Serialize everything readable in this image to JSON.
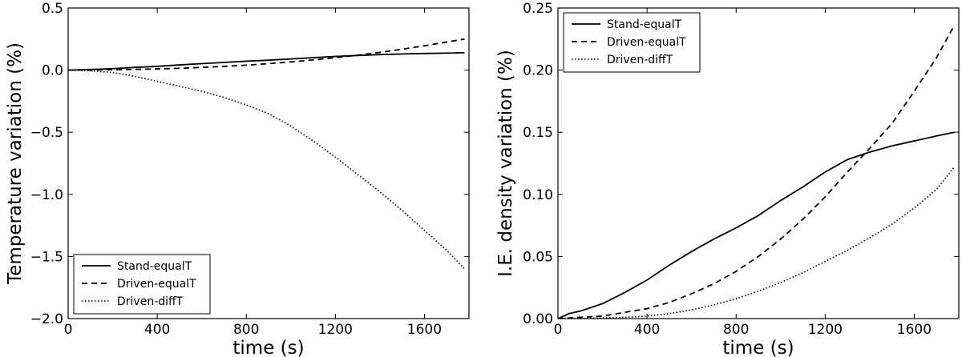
{
  "chart_data": [
    {
      "type": "line",
      "xlabel": "time (s)",
      "ylabel": "Temperature variation (%)",
      "xlim": [
        0,
        1800
      ],
      "ylim": [
        -2.0,
        0.5
      ],
      "xticks": [
        0,
        400,
        800,
        1200,
        1600
      ],
      "yticks": [
        -2.0,
        -1.5,
        -1.0,
        -0.5,
        0.0,
        0.5
      ],
      "xtick_labels": [
        "0",
        "400",
        "800",
        "1200",
        "1600"
      ],
      "ytick_labels": [
        "−2.0",
        "−1.5",
        "−1.0",
        "−0.5",
        "0.0",
        "0.5"
      ],
      "grid": false,
      "legend_position": "bottom-left",
      "series": [
        {
          "name": "Stand-equalT",
          "style": "solid",
          "x": [
            0,
            100,
            200,
            300,
            400,
            500,
            600,
            700,
            800,
            900,
            1000,
            1100,
            1200,
            1300,
            1400,
            1500,
            1600,
            1700,
            1780
          ],
          "y": [
            0,
            0.005,
            0.012,
            0.022,
            0.03,
            0.042,
            0.052,
            0.062,
            0.072,
            0.08,
            0.09,
            0.1,
            0.11,
            0.118,
            0.125,
            0.13,
            0.134,
            0.137,
            0.14
          ]
        },
        {
          "name": "Driven-equalT",
          "style": "dashed",
          "x": [
            0,
            100,
            200,
            300,
            400,
            500,
            600,
            700,
            800,
            900,
            1000,
            1100,
            1200,
            1300,
            1400,
            1500,
            1600,
            1700,
            1780
          ],
          "y": [
            0,
            0.001,
            0.003,
            0.006,
            0.01,
            0.015,
            0.022,
            0.03,
            0.04,
            0.052,
            0.066,
            0.082,
            0.1,
            0.12,
            0.143,
            0.168,
            0.196,
            0.226,
            0.25
          ]
        },
        {
          "name": "Driven-diffT",
          "style": "dotted",
          "x": [
            0,
            100,
            200,
            300,
            400,
            500,
            600,
            700,
            800,
            900,
            1000,
            1100,
            1200,
            1300,
            1400,
            1500,
            1600,
            1700,
            1780
          ],
          "y": [
            0,
            -0.005,
            -0.02,
            -0.05,
            -0.09,
            -0.13,
            -0.17,
            -0.22,
            -0.28,
            -0.35,
            -0.45,
            -0.57,
            -0.7,
            -0.84,
            -0.98,
            -1.13,
            -1.29,
            -1.45,
            -1.6
          ]
        }
      ]
    },
    {
      "type": "line",
      "xlabel": "time (s)",
      "ylabel": "I.E. density variation (%)",
      "xlim": [
        0,
        1800
      ],
      "ylim": [
        0.0,
        0.25
      ],
      "xticks": [
        0,
        400,
        800,
        1200,
        1600
      ],
      "yticks": [
        0.0,
        0.05,
        0.1,
        0.15,
        0.2,
        0.25
      ],
      "xtick_labels": [
        "0",
        "400",
        "800",
        "1200",
        "1600"
      ],
      "ytick_labels": [
        "0.00",
        "0.05",
        "0.10",
        "0.15",
        "0.20",
        "0.25"
      ],
      "grid": false,
      "legend_position": "top-left",
      "series": [
        {
          "name": "Stand-equalT",
          "style": "solid",
          "x": [
            0,
            50,
            100,
            200,
            300,
            400,
            500,
            600,
            700,
            800,
            900,
            1000,
            1100,
            1200,
            1300,
            1400,
            1500,
            1600,
            1700,
            1780
          ],
          "y": [
            0,
            0.004,
            0.006,
            0.012,
            0.021,
            0.031,
            0.043,
            0.054,
            0.064,
            0.073,
            0.083,
            0.095,
            0.106,
            0.118,
            0.128,
            0.134,
            0.139,
            0.143,
            0.147,
            0.15
          ]
        },
        {
          "name": "Driven-equalT",
          "style": "dashed",
          "x": [
            0,
            100,
            200,
            300,
            400,
            500,
            600,
            700,
            800,
            900,
            1000,
            1100,
            1200,
            1300,
            1400,
            1500,
            1600,
            1700,
            1780
          ],
          "y": [
            0,
            0.001,
            0.002,
            0.005,
            0.008,
            0.013,
            0.02,
            0.028,
            0.038,
            0.05,
            0.064,
            0.08,
            0.098,
            0.118,
            0.137,
            0.157,
            0.183,
            0.21,
            0.236
          ]
        },
        {
          "name": "Driven-diffT",
          "style": "dotted",
          "x": [
            0,
            100,
            200,
            300,
            400,
            500,
            600,
            700,
            800,
            900,
            1000,
            1100,
            1200,
            1300,
            1400,
            1500,
            1600,
            1700,
            1780
          ],
          "y": [
            0,
            0.0,
            0.0005,
            0.001,
            0.002,
            0.004,
            0.007,
            0.011,
            0.016,
            0.022,
            0.029,
            0.037,
            0.046,
            0.055,
            0.065,
            0.076,
            0.089,
            0.104,
            0.122
          ]
        }
      ]
    }
  ]
}
